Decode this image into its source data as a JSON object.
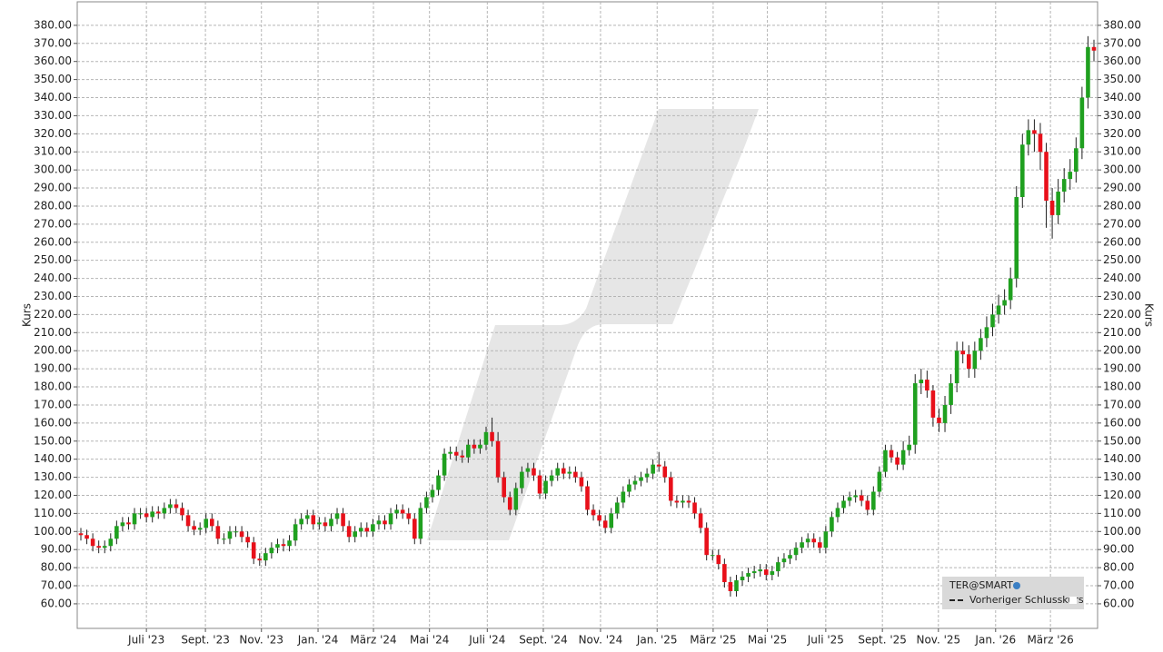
{
  "chart_data": {
    "type": "candlestick",
    "y_label": "Kurs",
    "legend": {
      "title": "TER@SMART",
      "entries": [
        "Vorheriger Schlusskurs"
      ],
      "position": "lower right"
    },
    "up_color": "#1fa01f",
    "down_color": "#e8101a",
    "ylim": [
      46.4,
      393
    ],
    "xlim": [
      -1,
      171
    ],
    "grid": true,
    "yticks": [
      {
        "value": 60,
        "label": "60.00"
      },
      {
        "value": 70,
        "label": "70.00"
      },
      {
        "value": 80,
        "label": "80.00"
      },
      {
        "value": 90,
        "label": "90.00"
      },
      {
        "value": 100,
        "label": "100.00"
      },
      {
        "value": 110,
        "label": "110.00"
      },
      {
        "value": 120,
        "label": "120.00"
      },
      {
        "value": 130,
        "label": "130.00"
      },
      {
        "value": 140,
        "label": "140.00"
      },
      {
        "value": 150,
        "label": "150.00"
      },
      {
        "value": 160,
        "label": "160.00"
      },
      {
        "value": 170,
        "label": "170.00"
      },
      {
        "value": 180,
        "label": "180.00"
      },
      {
        "value": 190,
        "label": "190.00"
      },
      {
        "value": 200,
        "label": "200.00"
      },
      {
        "value": 210,
        "label": "210.00"
      },
      {
        "value": 220,
        "label": "220.00"
      },
      {
        "value": 230,
        "label": "230.00"
      },
      {
        "value": 240,
        "label": "240.00"
      },
      {
        "value": 250,
        "label": "250.00"
      },
      {
        "value": 260,
        "label": "260.00"
      },
      {
        "value": 270,
        "label": "270.00"
      },
      {
        "value": 280,
        "label": "280.00"
      },
      {
        "value": 290,
        "label": "290.00"
      },
      {
        "value": 300,
        "label": "300.00"
      },
      {
        "value": 310,
        "label": "310.00"
      },
      {
        "value": 320,
        "label": "320.00"
      },
      {
        "value": 330,
        "label": "330.00"
      },
      {
        "value": 340,
        "label": "340.00"
      },
      {
        "value": 350,
        "label": "350.00"
      },
      {
        "value": 360,
        "label": "360.00"
      },
      {
        "value": 370,
        "label": "370.00"
      },
      {
        "value": 380,
        "label": "380.00"
      }
    ],
    "xticks": [
      {
        "value": 11.0,
        "label": "Juli '23"
      },
      {
        "value": 20.9,
        "label": "Sept. '23"
      },
      {
        "value": 30.3,
        "label": "Nov. '23"
      },
      {
        "value": 39.8,
        "label": "Jan. '24"
      },
      {
        "value": 49.1,
        "label": "März '24"
      },
      {
        "value": 58.5,
        "label": "Mai '24"
      },
      {
        "value": 68.2,
        "label": "Juli '24"
      },
      {
        "value": 77.6,
        "label": "Sept. '24"
      },
      {
        "value": 87.2,
        "label": "Nov. '24"
      },
      {
        "value": 96.7,
        "label": "Jan. '25"
      },
      {
        "value": 106.1,
        "label": "März '25"
      },
      {
        "value": 115.2,
        "label": "Mai '25"
      },
      {
        "value": 125.0,
        "label": "Juli '25"
      },
      {
        "value": 134.5,
        "label": "Sept. '25"
      },
      {
        "value": 143.9,
        "label": "Nov. '25"
      },
      {
        "value": 153.5,
        "label": "Jan. '26"
      },
      {
        "value": 162.7,
        "label": "März '26"
      }
    ],
    "open": [
      99,
      98,
      96,
      92,
      91,
      92,
      96,
      103,
      105,
      104,
      110,
      110,
      108,
      111,
      110,
      113,
      115,
      113,
      109,
      103,
      101,
      102,
      107,
      103,
      96,
      96,
      100,
      100,
      97,
      94,
      85,
      84,
      88,
      91,
      93,
      92,
      95,
      104,
      107,
      109,
      104,
      105,
      103,
      107,
      110,
      103,
      97,
      100,
      102,
      100,
      104,
      106,
      104,
      110,
      112,
      110,
      107,
      96,
      113,
      119,
      123,
      131,
      143,
      144,
      142,
      141,
      148,
      146,
      148,
      155,
      150,
      130,
      119,
      112,
      124,
      133,
      135,
      131,
      121,
      128,
      131,
      135,
      132,
      133,
      130,
      125,
      112,
      109,
      106,
      102,
      110,
      116,
      122,
      126,
      128,
      130,
      132,
      137,
      136,
      130,
      117,
      116,
      117,
      116,
      110,
      102,
      87,
      87,
      82,
      72,
      67,
      73,
      75,
      77,
      78,
      79,
      76,
      78,
      83,
      85,
      87,
      91,
      94,
      96,
      94,
      91,
      100,
      108,
      113,
      117,
      119,
      120,
      117,
      112,
      122,
      133,
      145,
      141,
      137,
      145,
      148,
      182,
      184,
      178,
      163,
      160,
      170,
      182,
      200,
      198,
      190,
      200,
      207,
      213,
      220,
      225,
      228,
      240,
      285,
      314,
      322,
      320,
      310,
      283,
      275,
      288,
      295,
      299,
      312,
      340,
      368
    ],
    "high": [
      102,
      101,
      99,
      95,
      95,
      99,
      106,
      108,
      108,
      113,
      113,
      113,
      114,
      114,
      116,
      118,
      118,
      116,
      112,
      106,
      105,
      110,
      110,
      106,
      99,
      103,
      103,
      103,
      100,
      97,
      88,
      91,
      94,
      96,
      96,
      98,
      107,
      110,
      112,
      112,
      108,
      108,
      110,
      113,
      113,
      106,
      103,
      105,
      105,
      107,
      109,
      109,
      113,
      115,
      115,
      113,
      110,
      116,
      122,
      126,
      134,
      146,
      147,
      147,
      145,
      151,
      151,
      151,
      158,
      163,
      155,
      133,
      122,
      127,
      136,
      138,
      138,
      134,
      131,
      134,
      138,
      138,
      136,
      136,
      133,
      128,
      115,
      112,
      109,
      113,
      119,
      125,
      129,
      131,
      133,
      135,
      140,
      144,
      139,
      133,
      120,
      120,
      120,
      119,
      113,
      105,
      90,
      90,
      85,
      75,
      76,
      78,
      80,
      81,
      82,
      82,
      81,
      86,
      88,
      90,
      94,
      97,
      99,
      99,
      97,
      103,
      111,
      116,
      120,
      122,
      123,
      123,
      120,
      125,
      136,
      148,
      148,
      144,
      150,
      153,
      187,
      190,
      189,
      181,
      168,
      175,
      187,
      205,
      205,
      203,
      205,
      212,
      219,
      226,
      231,
      234,
      246,
      291,
      320,
      328,
      328,
      326,
      315,
      290,
      295,
      301,
      306,
      318,
      346,
      374,
      372
    ],
    "low": [
      95,
      93,
      89,
      88,
      88,
      89,
      93,
      100,
      101,
      101,
      107,
      105,
      105,
      107,
      107,
      110,
      110,
      106,
      100,
      98,
      98,
      99,
      100,
      93,
      93,
      93,
      97,
      94,
      91,
      82,
      81,
      81,
      85,
      88,
      89,
      89,
      92,
      101,
      104,
      101,
      101,
      100,
      100,
      104,
      100,
      94,
      94,
      97,
      97,
      97,
      101,
      101,
      101,
      107,
      107,
      104,
      93,
      93,
      110,
      116,
      120,
      128,
      140,
      139,
      138,
      138,
      143,
      143,
      145,
      147,
      127,
      116,
      109,
      109,
      121,
      130,
      128,
      118,
      118,
      125,
      128,
      129,
      129,
      127,
      122,
      109,
      106,
      103,
      99,
      99,
      107,
      113,
      119,
      123,
      125,
      127,
      129,
      133,
      127,
      114,
      113,
      113,
      113,
      107,
      99,
      84,
      84,
      79,
      69,
      64,
      64,
      70,
      72,
      74,
      75,
      73,
      73,
      75,
      80,
      82,
      84,
      88,
      91,
      91,
      88,
      88,
      97,
      105,
      110,
      114,
      116,
      114,
      109,
      109,
      119,
      130,
      138,
      134,
      134,
      142,
      143,
      176,
      174,
      158,
      155,
      155,
      165,
      177,
      193,
      185,
      185,
      195,
      202,
      208,
      215,
      220,
      223,
      235,
      279,
      308,
      310,
      300,
      268,
      262,
      270,
      282,
      289,
      293,
      306,
      334,
      360
    ],
    "close": [
      98,
      96,
      92,
      91,
      92,
      96,
      103,
      105,
      104,
      110,
      110,
      108,
      111,
      110,
      113,
      115,
      113,
      109,
      103,
      101,
      102,
      107,
      103,
      96,
      96,
      100,
      100,
      97,
      94,
      85,
      84,
      88,
      91,
      93,
      92,
      95,
      104,
      107,
      109,
      104,
      105,
      103,
      107,
      110,
      103,
      97,
      100,
      102,
      100,
      104,
      106,
      104,
      110,
      112,
      110,
      107,
      96,
      113,
      119,
      123,
      131,
      143,
      144,
      142,
      141,
      148,
      146,
      148,
      155,
      150,
      130,
      119,
      112,
      124,
      133,
      135,
      131,
      121,
      128,
      131,
      135,
      132,
      133,
      130,
      125,
      112,
      109,
      106,
      102,
      110,
      116,
      122,
      126,
      128,
      130,
      132,
      137,
      136,
      130,
      117,
      116,
      117,
      116,
      110,
      102,
      87,
      87,
      82,
      72,
      67,
      73,
      75,
      77,
      78,
      79,
      76,
      78,
      83,
      85,
      87,
      91,
      94,
      96,
      94,
      91,
      100,
      108,
      113,
      117,
      119,
      120,
      117,
      112,
      122,
      133,
      145,
      141,
      137,
      145,
      148,
      182,
      184,
      178,
      163,
      160,
      170,
      182,
      200,
      198,
      190,
      200,
      207,
      213,
      220,
      225,
      228,
      240,
      285,
      314,
      322,
      320,
      310,
      283,
      275,
      288,
      295,
      299,
      312,
      340,
      368,
      366
    ]
  }
}
